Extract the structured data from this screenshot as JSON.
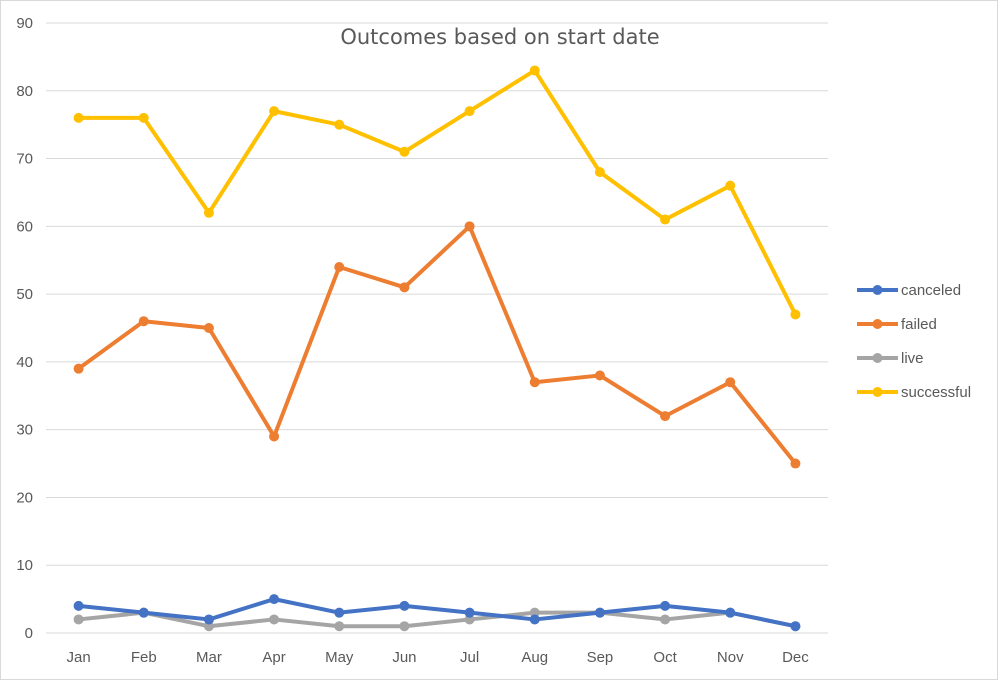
{
  "chart_data": {
    "type": "line",
    "title": "Outcomes based on start date",
    "xlabel": "",
    "ylabel": "",
    "categories": [
      "Jan",
      "Feb",
      "Mar",
      "Apr",
      "May",
      "Jun",
      "Jul",
      "Aug",
      "Sep",
      "Oct",
      "Nov",
      "Dec"
    ],
    "ylim": [
      0,
      90
    ],
    "yticks": [
      0,
      10,
      20,
      30,
      40,
      50,
      60,
      70,
      80,
      90
    ],
    "grid": true,
    "legend_position": "right",
    "series": [
      {
        "name": "canceled",
        "color": "#4472c4",
        "values": [
          4,
          3,
          2,
          5,
          3,
          4,
          3,
          2,
          3,
          4,
          3,
          1
        ]
      },
      {
        "name": "failed",
        "color": "#ed7d31",
        "values": [
          39,
          46,
          45,
          29,
          54,
          51,
          60,
          37,
          38,
          32,
          37,
          25
        ]
      },
      {
        "name": "live",
        "color": "#a5a5a5",
        "values": [
          2,
          3,
          1,
          2,
          1,
          1,
          2,
          3,
          3,
          2,
          3,
          1
        ]
      },
      {
        "name": "successful",
        "color": "#ffc000",
        "values": [
          76,
          76,
          62,
          77,
          75,
          71,
          77,
          83,
          68,
          61,
          66,
          47
        ]
      }
    ]
  }
}
